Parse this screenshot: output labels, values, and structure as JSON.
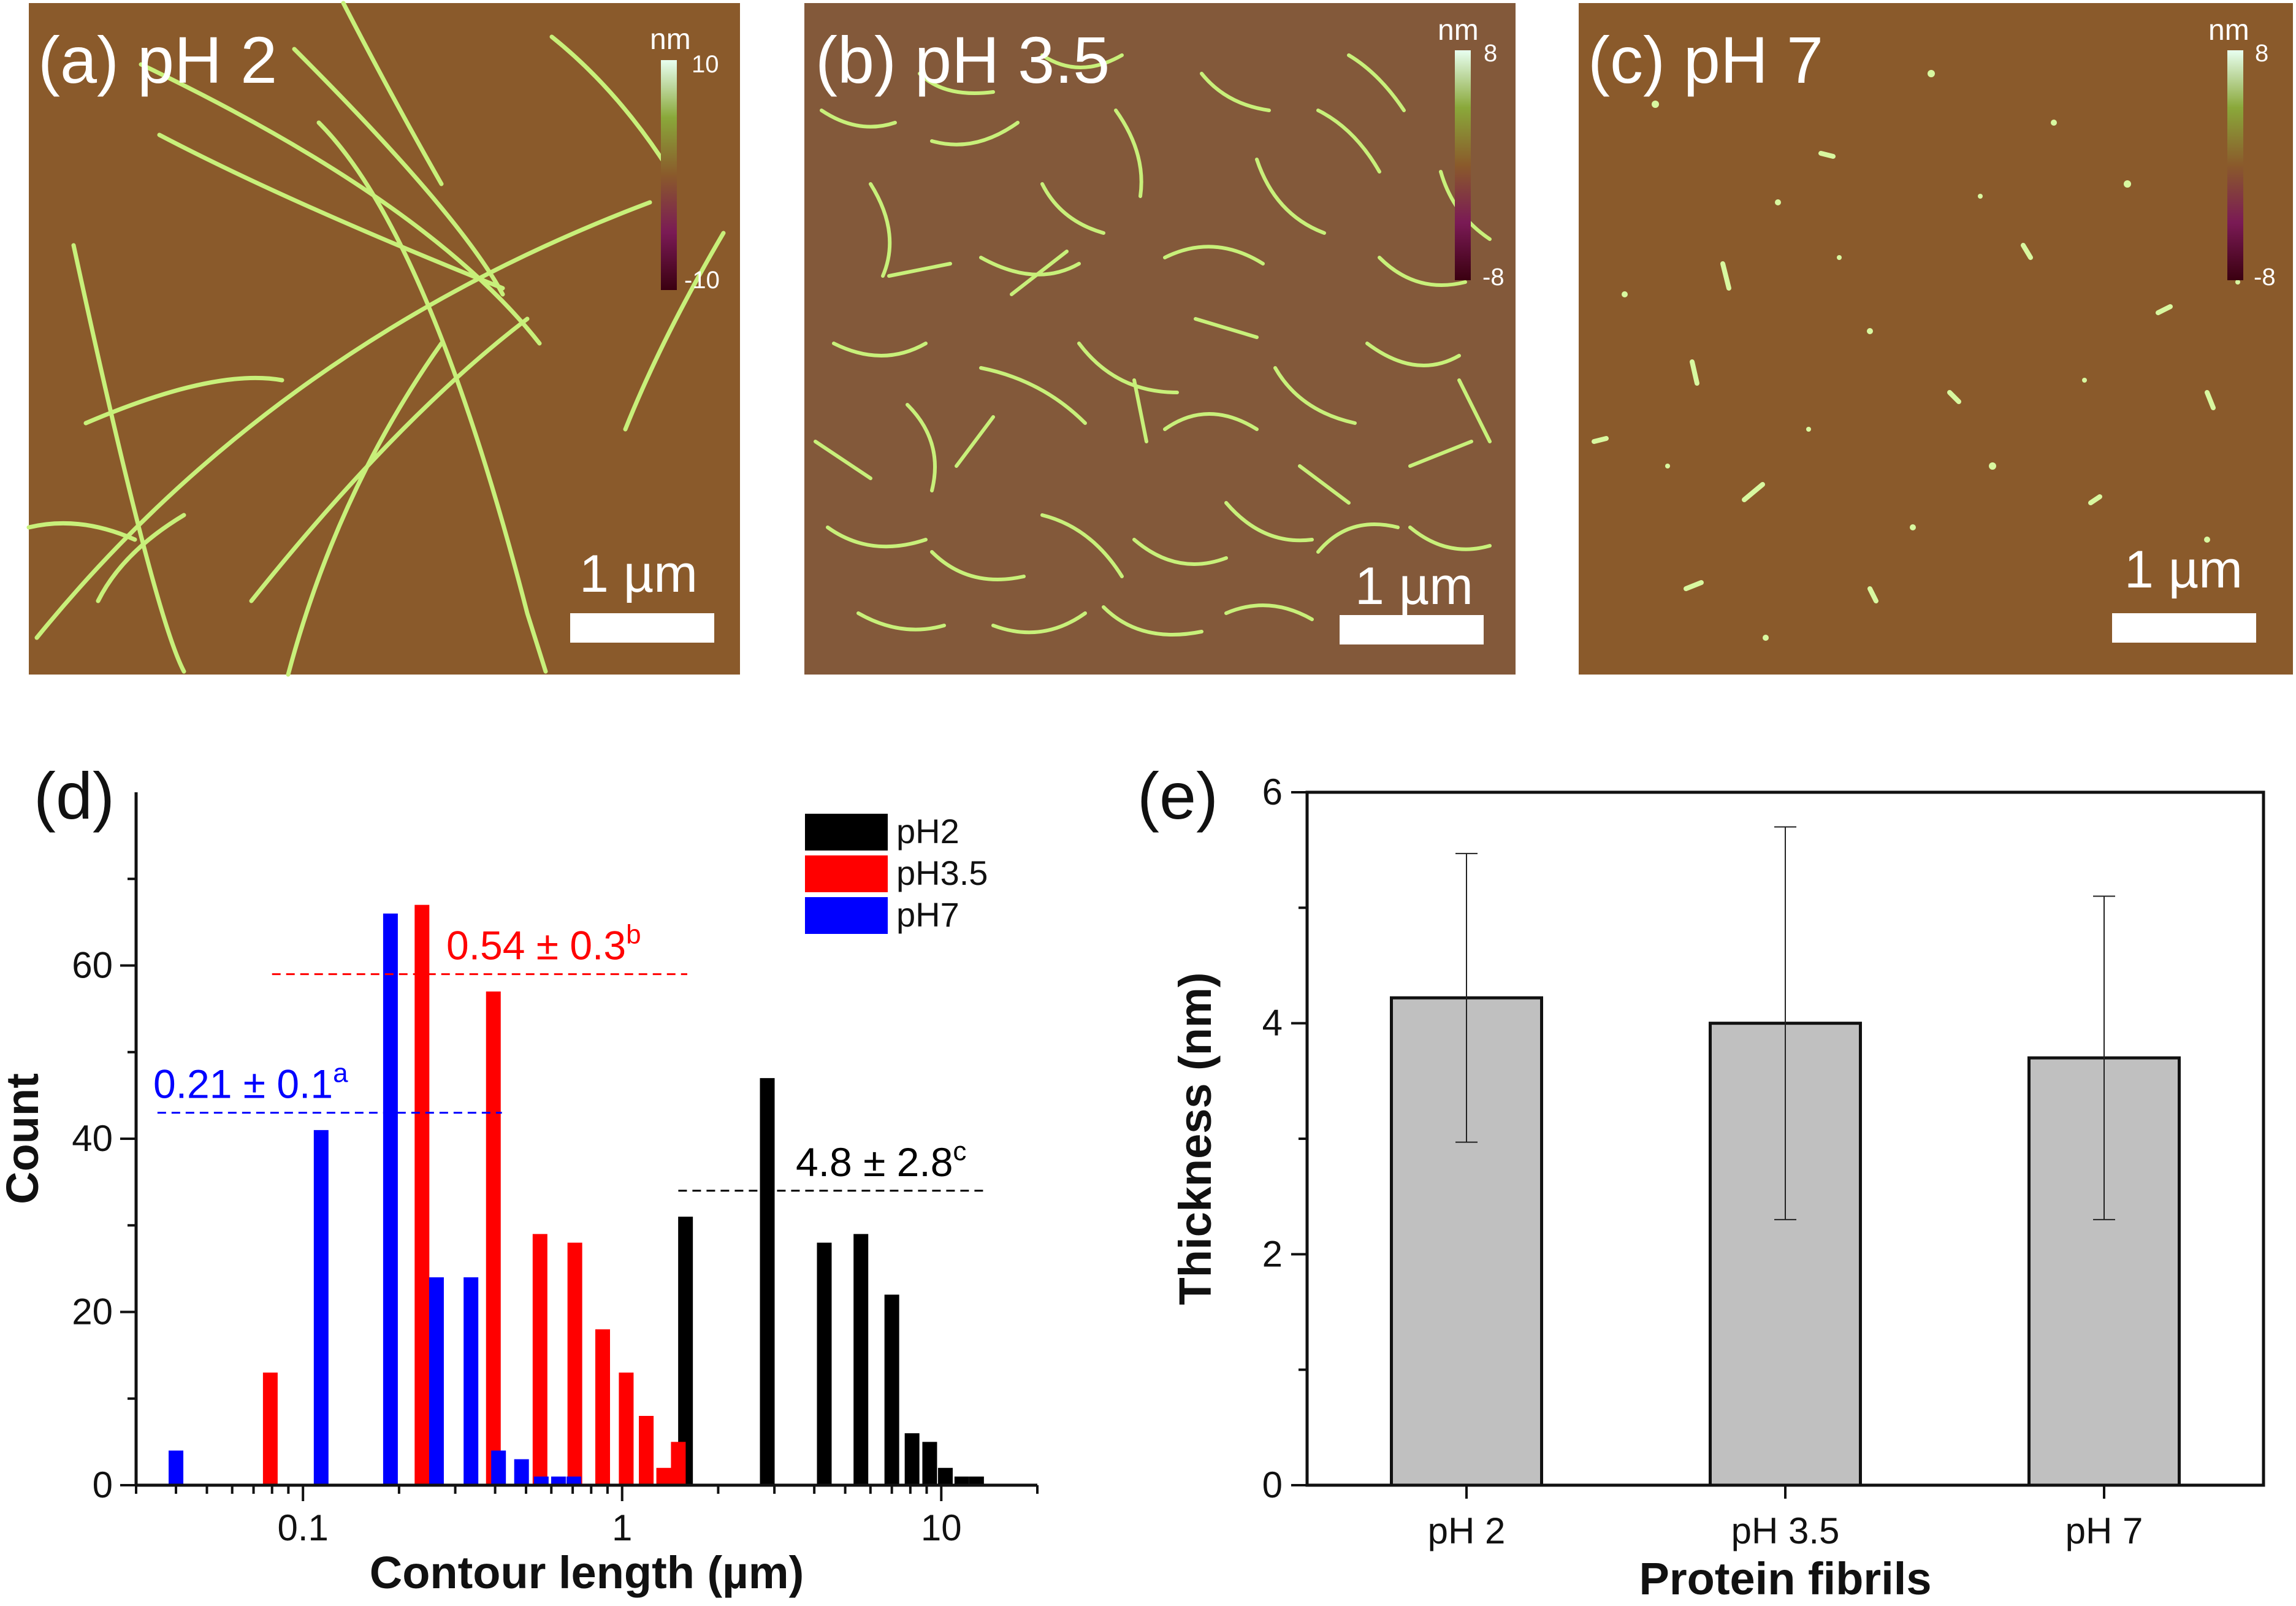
{
  "afm_panels": [
    {
      "label": "(a) pH 2",
      "colorbar_unit": "nm",
      "colorbar_max": "10",
      "colorbar_min": "-10",
      "scalebar_label": "1 µm"
    },
    {
      "label": "(b) pH 3.5",
      "colorbar_unit": "nm",
      "colorbar_max": "8",
      "colorbar_min": "-8",
      "scalebar_label": "1 µm"
    },
    {
      "label": "(c) pH 7",
      "colorbar_unit": "nm",
      "colorbar_max": "8",
      "colorbar_min": "-8",
      "scalebar_label": "1 µm"
    }
  ],
  "colors": {
    "afm_background": "#8a5a2b",
    "fibril": "#c8f07a",
    "pH2": "#000000",
    "pH3.5": "#ff0000",
    "pH7": "#0000ff",
    "thickness_bar": "#c0c0c0"
  },
  "chart_data": [
    {
      "panel_label": "(d)",
      "type": "bar",
      "xlabel": "Contour length (µm)",
      "ylabel": "Count",
      "xscale": "log",
      "xlim": [
        0.03,
        20
      ],
      "ylim": [
        0,
        80
      ],
      "xticks": [
        {
          "value": 0.1,
          "label": "0.1"
        },
        {
          "value": 1,
          "label": "1"
        },
        {
          "value": 10,
          "label": "10"
        }
      ],
      "yticks": [
        0,
        20,
        40,
        60
      ],
      "legend_position": "top-right",
      "series": [
        {
          "name": "pH2",
          "color": "#000000",
          "x": [
            1.58,
            2.85,
            4.3,
            5.6,
            7.0,
            8.1,
            9.2,
            10.3,
            11.6,
            12.9
          ],
          "values": [
            31,
            47,
            28,
            29,
            22,
            6,
            5,
            2,
            1,
            1
          ]
        },
        {
          "name": "pH3.5",
          "color": "#ff0000",
          "x": [
            0.079,
            0.236,
            0.395,
            0.553,
            0.711,
            0.869,
            1.03,
            1.19,
            1.35,
            1.5
          ],
          "values": [
            13,
            67,
            57,
            29,
            28,
            18,
            13,
            8,
            2,
            5
          ]
        },
        {
          "name": "pH7",
          "color": "#0000ff",
          "x": [
            0.04,
            0.114,
            0.188,
            0.262,
            0.336,
            0.41,
            0.484,
            0.558,
            0.632,
            0.706
          ],
          "values": [
            4,
            41,
            66,
            24,
            24,
            4,
            3,
            1,
            1,
            1
          ]
        }
      ],
      "annotations": [
        {
          "series": "pH7",
          "text": "0.21 ± 0.1",
          "sup": "a",
          "y": 43,
          "x_from": 0.035,
          "x_to": 0.42
        },
        {
          "series": "pH3.5",
          "text": "0.54 ± 0.3",
          "sup": "b",
          "y": 59,
          "x_from": 0.08,
          "x_to": 1.6
        },
        {
          "series": "pH2",
          "text": "4.8 ± 2.8",
          "sup": "c",
          "y": 34,
          "x_from": 1.5,
          "x_to": 14
        }
      ]
    },
    {
      "panel_label": "(e)",
      "type": "bar",
      "xlabel": "Protein fibrils",
      "ylabel": "Thickness (nm)",
      "ylim": [
        0,
        6
      ],
      "yticks": [
        0,
        2,
        4,
        6
      ],
      "categories": [
        "pH 2",
        "pH 3.5",
        "pH 7"
      ],
      "values": [
        4.22,
        4.0,
        3.7
      ],
      "error_low": [
        2.97,
        2.3,
        2.3
      ],
      "error_high": [
        5.47,
        5.7,
        5.1
      ]
    }
  ]
}
